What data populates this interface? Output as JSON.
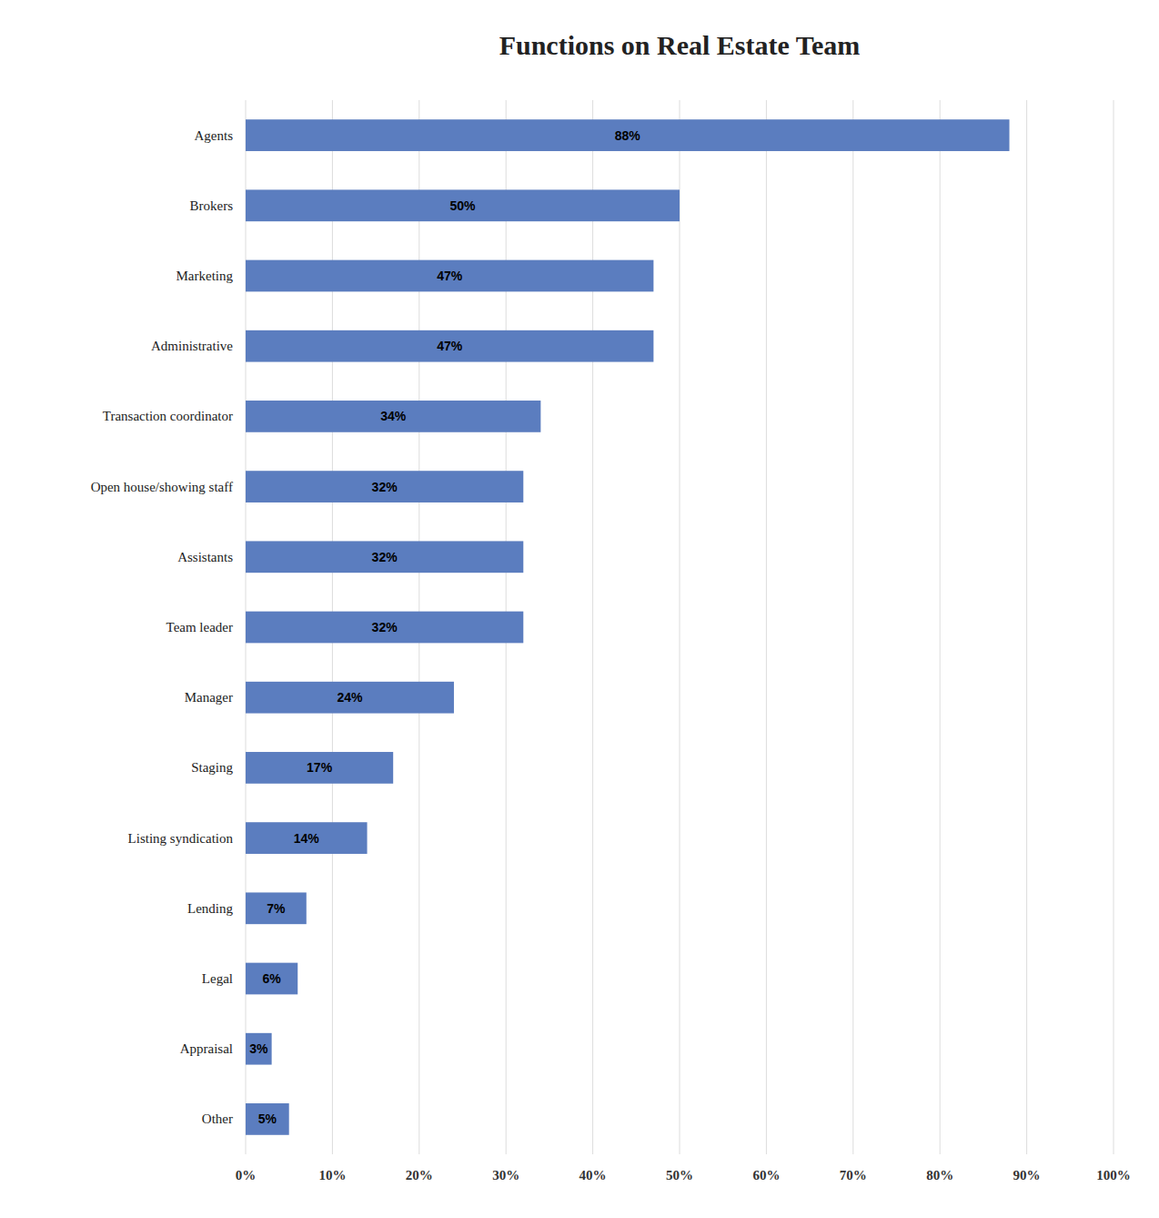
{
  "chart_data": {
    "type": "bar",
    "orientation": "horizontal",
    "title": "Functions on Real Estate Team",
    "categories": [
      "Agents",
      "Brokers",
      "Marketing",
      "Administrative",
      "Transaction coordinator",
      "Open house/showing staff",
      "Assistants",
      "Team leader",
      "Manager",
      "Staging",
      "Listing syndication",
      "Lending",
      "Legal",
      "Appraisal",
      "Other"
    ],
    "values": [
      88,
      50,
      47,
      47,
      34,
      32,
      32,
      32,
      24,
      17,
      14,
      7,
      6,
      3,
      5
    ],
    "value_labels": [
      "88%",
      "50%",
      "47%",
      "47%",
      "34%",
      "32%",
      "32%",
      "32%",
      "24%",
      "17%",
      "14%",
      "7%",
      "6%",
      "3%",
      "5%"
    ],
    "data_labels": true,
    "color": "#5B7DBF",
    "xlim": [
      0,
      100
    ],
    "xticks": [
      {
        "value": 0,
        "label": "0%"
      },
      {
        "value": 10,
        "label": "10%"
      },
      {
        "value": 20,
        "label": "20%"
      },
      {
        "value": 30,
        "label": "30%"
      },
      {
        "value": 40,
        "label": "40%"
      },
      {
        "value": 50,
        "label": "50%"
      },
      {
        "value": 60,
        "label": "60%"
      },
      {
        "value": 70,
        "label": "70%"
      },
      {
        "value": 80,
        "label": "80%"
      },
      {
        "value": 90,
        "label": "90%"
      },
      {
        "value": 100,
        "label": "100%"
      }
    ],
    "grid": true
  }
}
